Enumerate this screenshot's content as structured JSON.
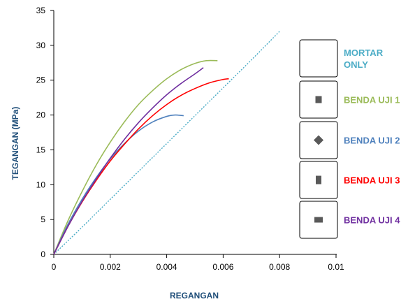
{
  "chart_data": {
    "type": "line",
    "title": "",
    "xlabel": "REGANGAN",
    "ylabel": "TEGANGAN (MPa)",
    "xlim": [
      0,
      0.01
    ],
    "ylim": [
      0,
      35
    ],
    "x_ticks": [
      0,
      0.002,
      0.004,
      0.006,
      0.008,
      0.01
    ],
    "x_tick_labels": [
      "0",
      "0.002",
      "0.004",
      "0.006",
      "0.008",
      "0.01"
    ],
    "y_ticks": [
      0,
      5,
      10,
      15,
      20,
      25,
      30,
      35
    ],
    "y_tick_labels": [
      "0",
      "5",
      "10",
      "15",
      "20",
      "25",
      "30",
      "35"
    ],
    "grid": false,
    "legend_position": "right",
    "series": [
      {
        "name": "MORTAR ONLY",
        "color": "#4BACC6",
        "style": "dotted",
        "marker": "none",
        "x": [
          0,
          0.001,
          0.002,
          0.003,
          0.004,
          0.005,
          0.006,
          0.007,
          0.008
        ],
        "y": [
          0,
          3.9,
          7.9,
          11.9,
          15.9,
          19.9,
          23.9,
          27.9,
          32
        ]
      },
      {
        "name": "BENDA UJI 1",
        "color": "#9BBB59",
        "style": "solid",
        "marker": "square",
        "x": [
          0,
          0.0005,
          0.001,
          0.0015,
          0.002,
          0.0025,
          0.003,
          0.0035,
          0.004,
          0.0045,
          0.005,
          0.0054,
          0.0058
        ],
        "y": [
          0,
          4.8,
          9.0,
          12.8,
          16.1,
          19.0,
          21.5,
          23.5,
          25.2,
          26.5,
          27.4,
          27.8,
          27.8
        ]
      },
      {
        "name": "BENDA UJI 2",
        "color": "#4F81BD",
        "style": "solid",
        "marker": "diamond",
        "x": [
          0,
          0.0005,
          0.001,
          0.0015,
          0.002,
          0.0025,
          0.003,
          0.0035,
          0.004,
          0.0043,
          0.0046
        ],
        "y": [
          0,
          4.3,
          7.9,
          11.0,
          13.7,
          15.9,
          17.7,
          19.0,
          19.8,
          20.0,
          19.9
        ]
      },
      {
        "name": "BENDA UJI 3",
        "color": "#FF0000",
        "style": "solid",
        "marker": "square",
        "x": [
          0,
          0.0005,
          0.001,
          0.0015,
          0.002,
          0.0025,
          0.003,
          0.0035,
          0.004,
          0.0045,
          0.005,
          0.0055,
          0.006,
          0.0062
        ],
        "y": [
          0,
          4.0,
          7.5,
          10.6,
          13.4,
          15.8,
          18.0,
          19.9,
          21.5,
          22.8,
          23.8,
          24.6,
          25.1,
          25.2
        ]
      },
      {
        "name": "BENDA UJI 4",
        "color": "#7030A0",
        "style": "solid",
        "marker": "square",
        "x": [
          0,
          0.0005,
          0.001,
          0.0015,
          0.002,
          0.0025,
          0.003,
          0.0035,
          0.004,
          0.0045,
          0.005,
          0.0053
        ],
        "y": [
          0,
          4.0,
          7.6,
          10.8,
          13.8,
          16.5,
          18.9,
          21.0,
          22.9,
          24.5,
          25.9,
          26.8
        ]
      }
    ],
    "legend": [
      {
        "label_lines": [
          "MORTAR",
          "ONLY"
        ],
        "color": "#4BACC6",
        "marker": "none"
      },
      {
        "label_lines": [
          "BENDA UJI 1"
        ],
        "color": "#9BBB59",
        "marker": "square"
      },
      {
        "label_lines": [
          "BENDA UJI 2"
        ],
        "color": "#4F81BD",
        "marker": "diamond"
      },
      {
        "label_lines": [
          "BENDA UJI 3"
        ],
        "color": "#FF0000",
        "marker": "tall-square"
      },
      {
        "label_lines": [
          "BENDA UJI 4"
        ],
        "color": "#7030A0",
        "marker": "wide-square"
      }
    ],
    "colors": {
      "axis": "#000000",
      "axis_title": "#1F4E79",
      "legend_box_border": "#000000",
      "marker_fill": "#595959"
    }
  }
}
